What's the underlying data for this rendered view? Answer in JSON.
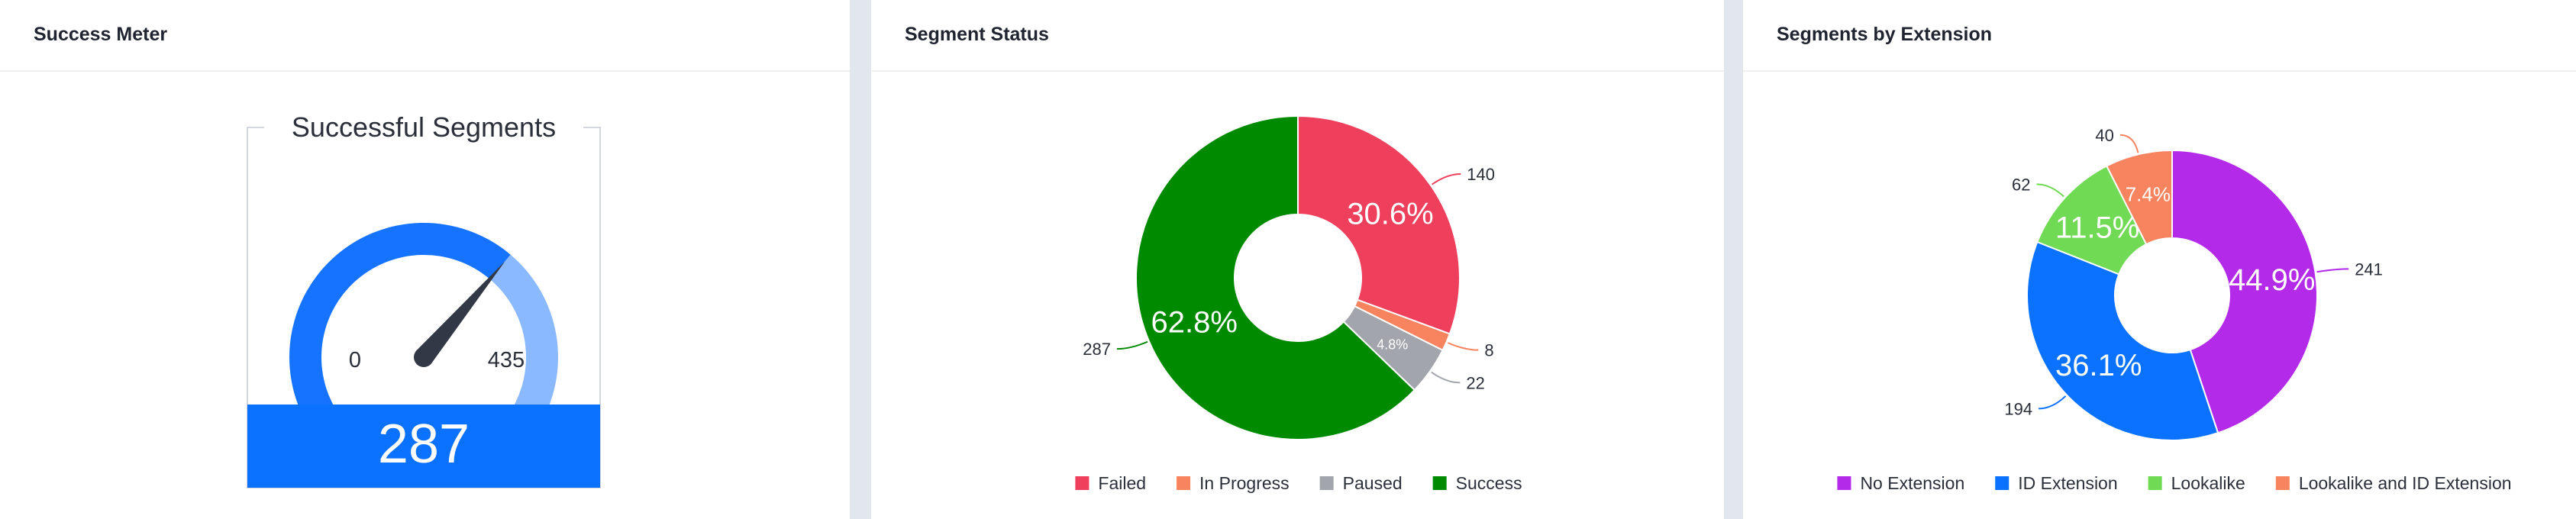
{
  "panels": [
    {
      "title": "Success Meter"
    },
    {
      "title": "Segment Status"
    },
    {
      "title": "Segments by Extension"
    }
  ],
  "gauge": {
    "title": "Successful Segments",
    "min_label": "0",
    "max_label": "435",
    "value_label": "287",
    "value": 287,
    "max": 435,
    "colors": {
      "filled": "#1673ff",
      "remaining": "#8ab9ff",
      "band": "#0a72ff",
      "needle": "#323845"
    }
  },
  "chart_data": [
    {
      "type": "pie",
      "style": "donut",
      "title": "Segment Status",
      "labels": [
        "Failed",
        "In Progress",
        "Paused",
        "Success"
      ],
      "values": [
        140,
        8,
        22,
        287
      ],
      "percent_labels": [
        "30.6%",
        "",
        "4.8%",
        "62.8%"
      ],
      "colors": [
        "#ee3f5c",
        "#f8845f",
        "#a2a5ab",
        "#008a00"
      ],
      "legend": "bottom"
    },
    {
      "type": "pie",
      "style": "donut",
      "title": "Segments by Extension",
      "labels": [
        "No Extension",
        "ID Extension",
        "Lookalike",
        "Lookalike and ID Extension"
      ],
      "values": [
        241,
        194,
        62,
        40
      ],
      "percent_labels": [
        "44.9%",
        "36.1%",
        "11.5%",
        "7.4%"
      ],
      "colors": [
        "#b32ae8",
        "#0a72ff",
        "#70da55",
        "#f8845f"
      ],
      "legend": "bottom"
    }
  ]
}
